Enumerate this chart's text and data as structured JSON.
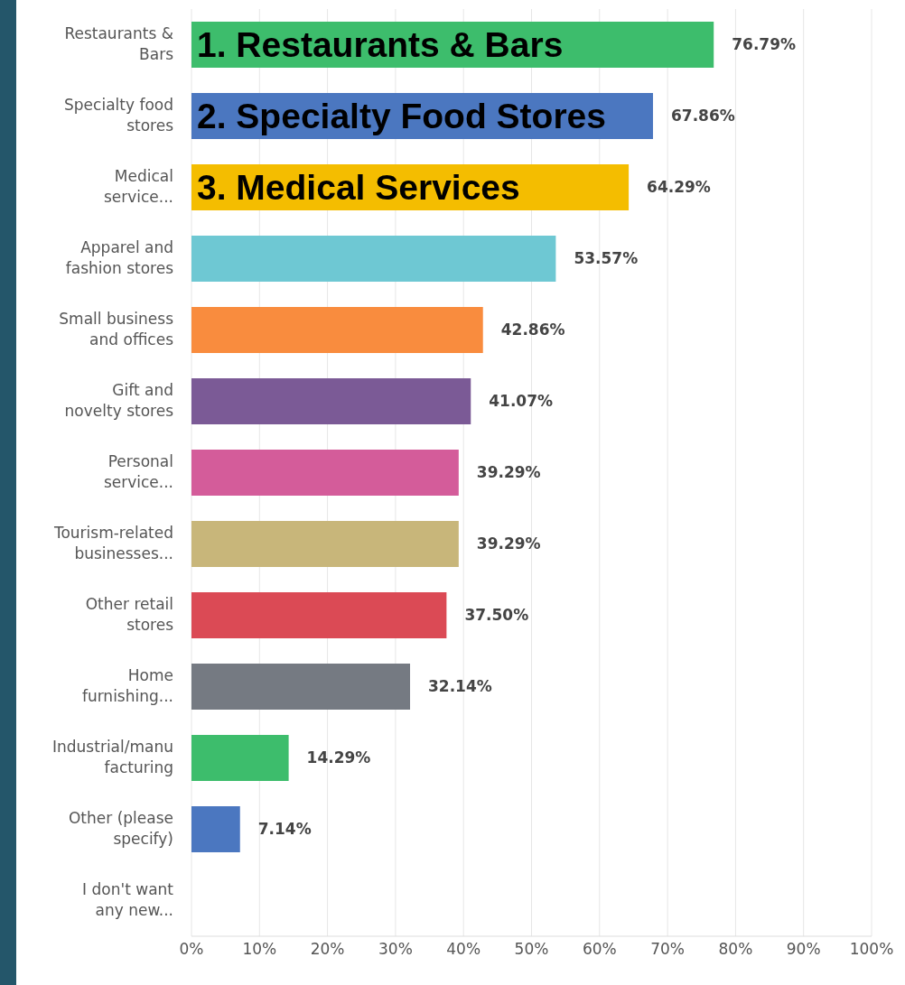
{
  "chart_data": {
    "type": "bar",
    "orientation": "horizontal",
    "categories": [
      "Restaurants & Bars",
      "Specialty food stores",
      "Medical service...",
      "Apparel and fashion stores",
      "Small business and offices",
      "Gift and novelty stores",
      "Personal service...",
      "Tourism-related businesses...",
      "Other retail stores",
      "Home furnishing...",
      "Industrial/manufacturing",
      "Other (please specify)",
      "I don't want any new..."
    ],
    "values": [
      76.79,
      67.86,
      64.29,
      53.57,
      42.86,
      41.07,
      39.29,
      39.29,
      37.5,
      32.14,
      14.29,
      7.14,
      0
    ],
    "value_labels": [
      "76.79%",
      "67.86%",
      "64.29%",
      "53.57%",
      "42.86%",
      "41.07%",
      "39.29%",
      "39.29%",
      "37.50%",
      "32.14%",
      "14.29%",
      "7.14%",
      null
    ],
    "colors": [
      "#3dbd6c",
      "#4b77c0",
      "#f4bd00",
      "#6ec8d3",
      "#f98c3e",
      "#7b5a96",
      "#d45c9a",
      "#c8b67a",
      "#db4a55",
      "#757a82",
      "#3dbd6c",
      "#4b77c0",
      "#999999"
    ],
    "xlim": [
      0,
      100
    ],
    "xticks": [
      {
        "value": 0,
        "label": "0%"
      },
      {
        "value": 10,
        "label": "10%"
      },
      {
        "value": 20,
        "label": "20%"
      },
      {
        "value": 30,
        "label": "30%"
      },
      {
        "value": 40,
        "label": "40%"
      },
      {
        "value": 50,
        "label": "50%"
      },
      {
        "value": 60,
        "label": "60%"
      },
      {
        "value": 70,
        "label": "70%"
      },
      {
        "value": 80,
        "label": "80%"
      },
      {
        "value": 90,
        "label": "90%"
      },
      {
        "value": 100,
        "label": "100%"
      }
    ],
    "grid": "x",
    "legend": false,
    "annotations": [
      "1. Restaurants & Bars",
      "2. Specialty Food Stores",
      "3. Medical Services"
    ]
  }
}
